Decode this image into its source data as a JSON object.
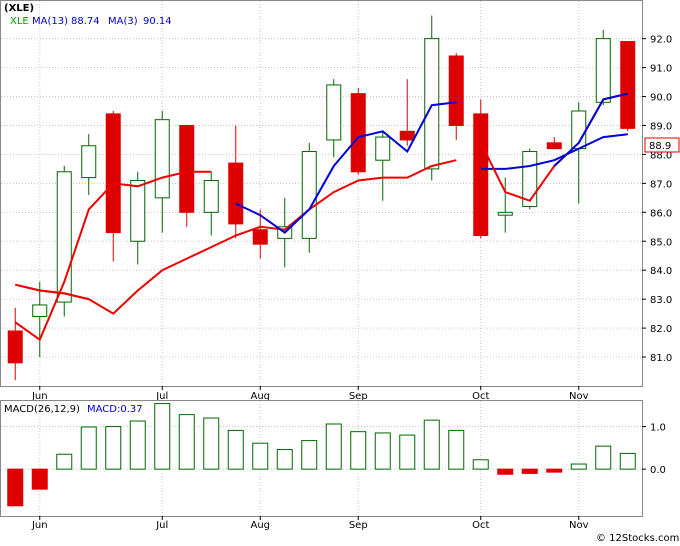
{
  "chart_data": [
    {
      "type": "candlestick",
      "title": "(XLE)",
      "legend": [
        {
          "label": "XLE",
          "color": "#009900"
        },
        {
          "label": "MA(13)",
          "value": "88.74",
          "color": "#0000cc"
        },
        {
          "label": "MA(3)",
          "value": "90.14",
          "color": "#0000cc"
        }
      ],
      "x_labels": [
        {
          "label": "Jun",
          "index": 1
        },
        {
          "label": "Jul",
          "index": 6
        },
        {
          "label": "Aug",
          "index": 10
        },
        {
          "label": "Sep",
          "index": 14
        },
        {
          "label": "Oct",
          "index": 19
        },
        {
          "label": "Nov",
          "index": 23
        }
      ],
      "ylim": [
        80,
        93.3
      ],
      "y_ticks": [
        "81.0",
        "82.0",
        "83.0",
        "84.0",
        "85.0",
        "86.0",
        "87.0",
        "88.0",
        "89.0",
        "90.0",
        "91.0",
        "92.0"
      ],
      "last_price": "88.9",
      "candles": [
        {
          "open": 81.9,
          "high": 82.7,
          "low": 80.2,
          "close": 80.8
        },
        {
          "open": 82.4,
          "high": 83.6,
          "low": 81.0,
          "close": 82.8
        },
        {
          "open": 82.9,
          "high": 87.6,
          "low": 82.4,
          "close": 87.4
        },
        {
          "open": 87.2,
          "high": 88.7,
          "low": 86.6,
          "close": 88.3
        },
        {
          "open": 89.4,
          "high": 89.5,
          "low": 84.3,
          "close": 85.3
        },
        {
          "open": 85.0,
          "high": 87.4,
          "low": 84.2,
          "close": 87.1
        },
        {
          "open": 86.5,
          "high": 89.5,
          "low": 85.3,
          "close": 89.2
        },
        {
          "open": 89.0,
          "high": 89.0,
          "low": 85.5,
          "close": 86.0
        },
        {
          "open": 86.0,
          "high": 87.4,
          "low": 85.2,
          "close": 87.1
        },
        {
          "open": 87.7,
          "high": 89.0,
          "low": 85.1,
          "close": 85.6
        },
        {
          "open": 85.4,
          "high": 86.1,
          "low": 84.4,
          "close": 84.9
        },
        {
          "open": 85.1,
          "high": 86.5,
          "low": 84.1,
          "close": 85.5
        },
        {
          "open": 85.1,
          "high": 88.4,
          "low": 84.6,
          "close": 88.1
        },
        {
          "open": 88.5,
          "high": 90.6,
          "low": 87.9,
          "close": 90.4
        },
        {
          "open": 90.1,
          "high": 90.3,
          "low": 87.3,
          "close": 87.4
        },
        {
          "open": 87.8,
          "high": 88.8,
          "low": 86.4,
          "close": 88.6
        },
        {
          "open": 88.8,
          "high": 90.6,
          "low": 88.3,
          "close": 88.5
        },
        {
          "open": 87.5,
          "high": 92.8,
          "low": 87.1,
          "close": 92.0
        },
        {
          "open": 91.4,
          "high": 91.5,
          "low": 88.5,
          "close": 89.0
        },
        {
          "open": 89.4,
          "high": 89.9,
          "low": 85.1,
          "close": 85.2
        },
        {
          "open": 85.9,
          "high": 87.2,
          "low": 85.3,
          "close": 86.0
        },
        {
          "open": 86.2,
          "high": 88.2,
          "low": 86.1,
          "close": 88.1
        },
        {
          "open": 88.4,
          "high": 88.6,
          "low": 88.2,
          "close": 88.2
        },
        {
          "open": 88.2,
          "high": 89.8,
          "low": 86.3,
          "close": 89.5
        },
        {
          "open": 89.8,
          "high": 92.3,
          "low": 89.7,
          "close": 92.0
        },
        {
          "open": 91.9,
          "high": 91.9,
          "low": 88.8,
          "close": 88.9
        }
      ],
      "ma_red": [
        {
          "i": 0,
          "v": 83.5
        },
        {
          "i": 1,
          "v": 83.3
        },
        {
          "i": 2,
          "v": 83.2
        },
        {
          "i": 3,
          "v": 83.0
        },
        {
          "i": 4,
          "v": 82.5
        },
        {
          "i": 5,
          "v": 83.3
        },
        {
          "i": 6,
          "v": 84.0
        },
        {
          "i": 7,
          "v": 84.4
        },
        {
          "i": 8,
          "v": 84.8
        },
        {
          "i": 9,
          "v": 85.2
        },
        {
          "i": 10,
          "v": 85.5
        },
        {
          "i": 11,
          "v": 85.4
        },
        {
          "i": 12,
          "v": 86.1
        },
        {
          "i": 13,
          "v": 86.7
        },
        {
          "i": 14,
          "v": 87.1
        },
        {
          "i": 15,
          "v": 87.2
        },
        {
          "i": 16,
          "v": 87.2
        },
        {
          "i": 17,
          "v": 87.6
        },
        {
          "i": 18,
          "v": 87.8
        },
        {
          "i": 19,
          "v": 87.5
        },
        {
          "i": 20,
          "v": 87.5
        },
        {
          "i": 21,
          "v": 87.6
        },
        {
          "i": 22,
          "v": 87.8
        },
        {
          "i": 23,
          "v": 88.2
        },
        {
          "i": 24,
          "v": 88.6
        },
        {
          "i": 25,
          "v": 88.7
        }
      ],
      "ma_blue": [
        {
          "i": 0,
          "v": 82.2
        },
        {
          "i": 1,
          "v": 81.6
        },
        {
          "i": 2,
          "v": 83.6
        },
        {
          "i": 3,
          "v": 86.1
        },
        {
          "i": 4,
          "v": 87.0
        },
        {
          "i": 5,
          "v": 86.9
        },
        {
          "i": 6,
          "v": 87.2
        },
        {
          "i": 7,
          "v": 87.4
        },
        {
          "i": 8,
          "v": 87.4
        },
        {
          "i": 9,
          "v": 86.3
        },
        {
          "i": 10,
          "v": 85.9
        },
        {
          "i": 11,
          "v": 85.3
        },
        {
          "i": 12,
          "v": 86.1
        },
        {
          "i": 13,
          "v": 87.6
        },
        {
          "i": 14,
          "v": 88.6
        },
        {
          "i": 15,
          "v": 88.8
        },
        {
          "i": 16,
          "v": 88.1
        },
        {
          "i": 17,
          "v": 89.7
        },
        {
          "i": 18,
          "v": 89.8
        },
        {
          "i": 19,
          "v": 88.4
        },
        {
          "i": 20,
          "v": 86.7
        },
        {
          "i": 21,
          "v": 86.4
        },
        {
          "i": 22,
          "v": 87.6
        },
        {
          "i": 23,
          "v": 88.4
        },
        {
          "i": 24,
          "v": 89.9
        },
        {
          "i": 25,
          "v": 90.1
        }
      ]
    },
    {
      "type": "bar",
      "title": "MACD(26,12,9)",
      "legend": [
        {
          "label": "MACD(26,12,9)",
          "color": "#000000"
        },
        {
          "label": "MACD:0.37",
          "color": "#0000cc"
        }
      ],
      "ylim": [
        -1.1,
        1.6
      ],
      "y_ticks": [
        "1.0",
        "0.0"
      ],
      "values": [
        -0.86,
        -0.47,
        0.35,
        0.99,
        1.0,
        1.13,
        1.54,
        1.28,
        1.2,
        0.91,
        0.61,
        0.46,
        0.67,
        1.06,
        0.88,
        0.85,
        0.8,
        1.15,
        0.91,
        0.22,
        -0.12,
        -0.1,
        -0.07,
        0.12,
        0.54,
        0.37
      ],
      "x_labels": [
        {
          "label": "Jun",
          "index": 1
        },
        {
          "label": "Jul",
          "index": 6
        },
        {
          "label": "Aug",
          "index": 10
        },
        {
          "label": "Sep",
          "index": 14
        },
        {
          "label": "Oct",
          "index": 19
        },
        {
          "label": "Nov",
          "index": 23
        }
      ]
    }
  ],
  "footer": "© 12Stocks.com",
  "colors": {
    "up": "#006600",
    "down": "#dd0000",
    "ma_red": "#ee0000",
    "ma_blue": "#0000dd",
    "grid": "#c8c8c8",
    "price_tag": "#dd0000"
  }
}
